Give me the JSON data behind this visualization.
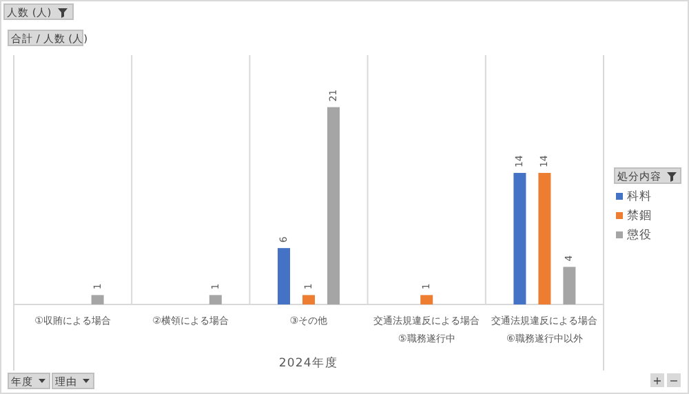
{
  "chart_data": {
    "type": "bar",
    "xlabel": "2024年度",
    "legend_title": "処分内容",
    "legend": "right",
    "data_labels": true,
    "grid": "x",
    "categories": [
      "①収賄による場合",
      "②横領による場合",
      "③その他",
      "交通法規違反による場合\n⑤職務遂行中",
      "交通法規違反による場合\n⑥職務遂行中以外"
    ],
    "series": [
      {
        "name": "科料",
        "color": "#4472c4",
        "values": [
          null,
          null,
          6,
          null,
          14
        ]
      },
      {
        "name": "禁錮",
        "color": "#ed7d31",
        "values": [
          null,
          null,
          1,
          1,
          14
        ]
      },
      {
        "name": "懲役",
        "color": "#a5a5a5",
        "values": [
          1,
          1,
          21,
          null,
          4
        ]
      }
    ],
    "annotations": [
      "人数 (人)",
      "合計 / 人数 (人)",
      "年度",
      "理由",
      "+",
      "−"
    ]
  }
}
